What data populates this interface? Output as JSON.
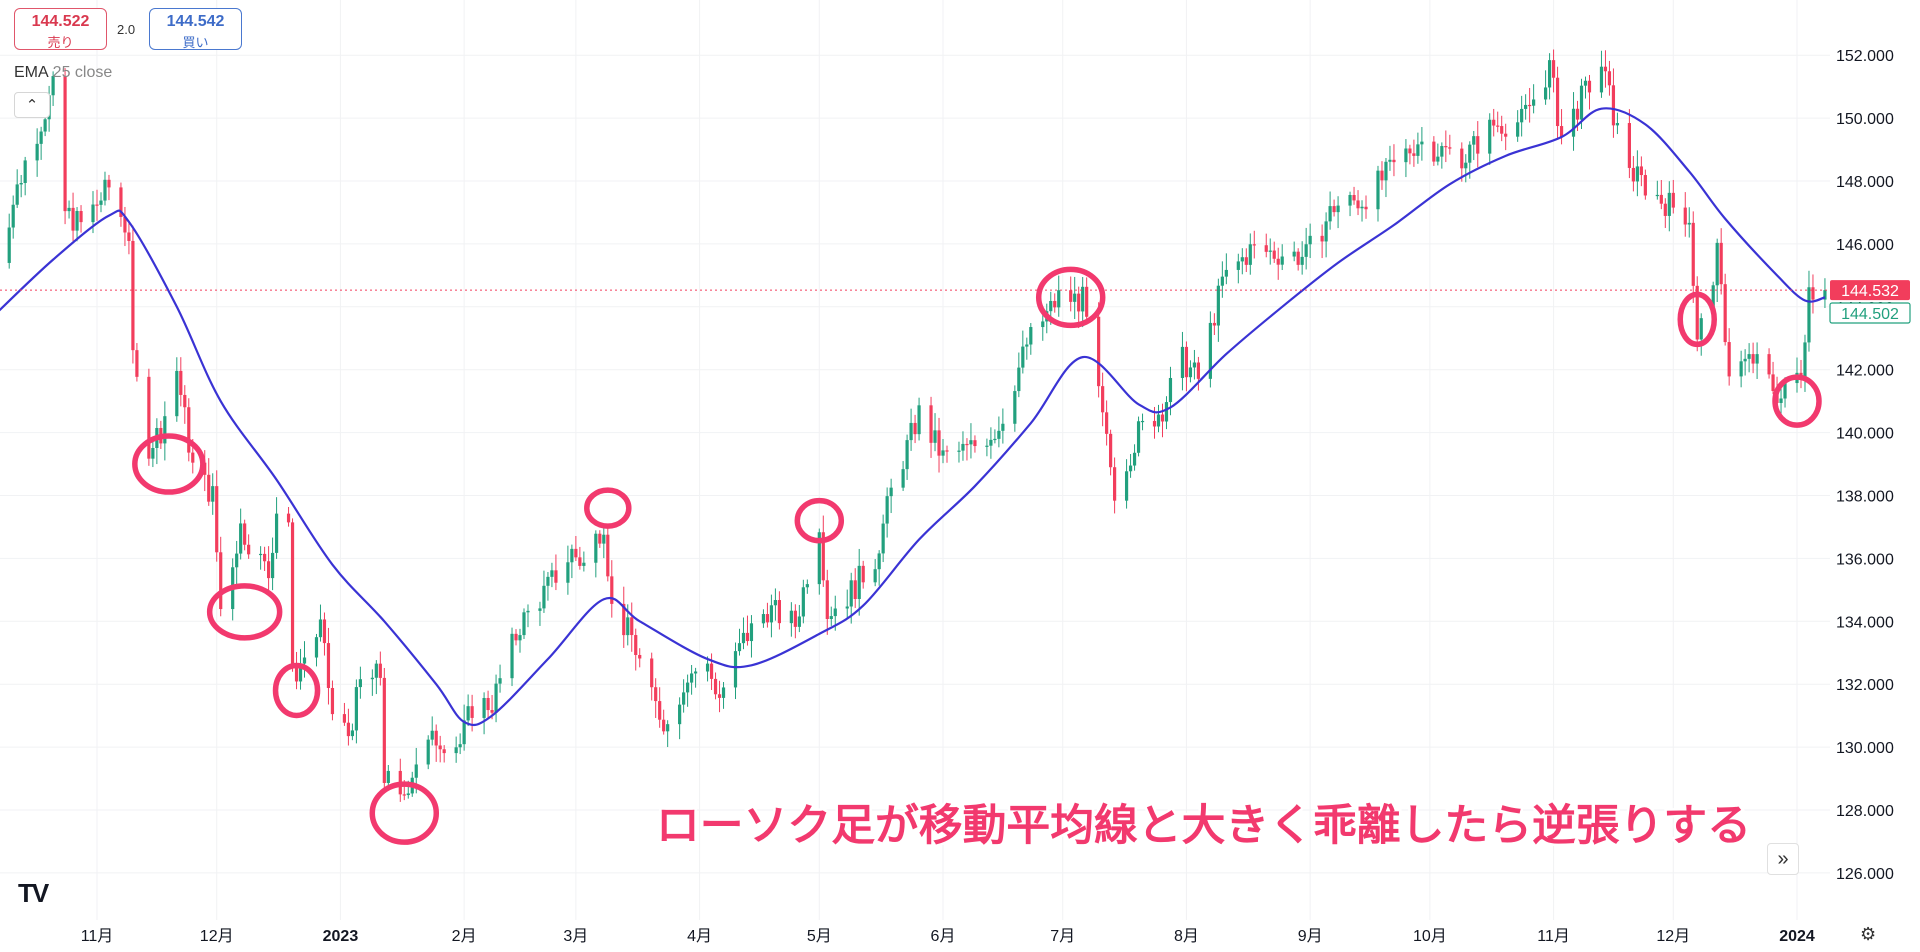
{
  "header": {
    "sell_price": "144.522",
    "sell_label": "売り",
    "buy_price": "144.542",
    "buy_label": "買い",
    "spread": "2.0"
  },
  "indicator": {
    "name": "EMA",
    "params": "25 close",
    "collapse_icon": "chevron-up-icon"
  },
  "annotation_text": "ローソク足が移動平均線と大きく乖離したら逆張りする",
  "icons": {
    "logo": "tradingview-logo",
    "goto_realtime": "chevrons-right-icon",
    "settings": "gear-icon"
  },
  "colors": {
    "up": "#22a07e",
    "down": "#f23d5c",
    "ema": "#3a33d4",
    "annotation": "#f2396e",
    "current_price": "#f23d5c",
    "bid_price": "#22a07e"
  },
  "chart_data": {
    "type": "candlestick",
    "ylim": [
      125,
      153
    ],
    "y_ticks": [
      "126.000",
      "128.000",
      "130.000",
      "132.000",
      "134.000",
      "136.000",
      "138.000",
      "140.000",
      "142.000",
      "144.000",
      "146.000",
      "148.000",
      "150.000",
      "152.000"
    ],
    "x_ticks": [
      {
        "label": "11月",
        "date": "2022-11-01"
      },
      {
        "label": "12月",
        "date": "2022-12-01"
      },
      {
        "label": "2023",
        "date": "2023-01-01",
        "bold": true
      },
      {
        "label": "2月",
        "date": "2023-02-01"
      },
      {
        "label": "3月",
        "date": "2023-03-01"
      },
      {
        "label": "4月",
        "date": "2023-04-01"
      },
      {
        "label": "5月",
        "date": "2023-05-01"
      },
      {
        "label": "6月",
        "date": "2023-06-01"
      },
      {
        "label": "7月",
        "date": "2023-07-01"
      },
      {
        "label": "8月",
        "date": "2023-08-01"
      },
      {
        "label": "9月",
        "date": "2023-09-01"
      },
      {
        "label": "10月",
        "date": "2023-10-01"
      },
      {
        "label": "11月",
        "date": "2023-11-01"
      },
      {
        "label": "12月",
        "date": "2023-12-01"
      },
      {
        "label": "2024",
        "date": "2024-01-01",
        "bold": true
      }
    ],
    "current_price": {
      "value": 144.532,
      "label": "144.532"
    },
    "bid_price": {
      "value": 144.502,
      "label": "144.502"
    },
    "close_path": [
      [
        "2022-10-06",
        145.2
      ],
      [
        "2022-10-14",
        148.6
      ],
      [
        "2022-10-21",
        150.9
      ],
      [
        "2022-10-24",
        147.0
      ],
      [
        "2022-10-28",
        146.6
      ],
      [
        "2022-11-04",
        147.8
      ],
      [
        "2022-11-09",
        146.3
      ],
      [
        "2022-11-10",
        142.2
      ],
      [
        "2022-11-14",
        139.6
      ],
      [
        "2022-11-17",
        140.1
      ],
      [
        "2022-11-21",
        142.0
      ],
      [
        "2022-11-25",
        138.9
      ],
      [
        "2022-11-30",
        138.0
      ],
      [
        "2022-12-02",
        134.4
      ],
      [
        "2022-12-07",
        137.0
      ],
      [
        "2022-12-14",
        135.5
      ],
      [
        "2022-12-16",
        137.6
      ],
      [
        "2022-12-19",
        137.2
      ],
      [
        "2022-12-20",
        132.2
      ],
      [
        "2022-12-27",
        133.8
      ],
      [
        "2022-12-30",
        131.0
      ],
      [
        "2023-01-03",
        130.4
      ],
      [
        "2023-01-06",
        132.0
      ],
      [
        "2023-01-11",
        132.3
      ],
      [
        "2023-01-12",
        129.1
      ],
      [
        "2023-01-16",
        128.2
      ],
      [
        "2023-01-20",
        129.6
      ],
      [
        "2023-01-25",
        130.3
      ],
      [
        "2023-01-31",
        130.1
      ],
      [
        "2023-02-03",
        131.3
      ],
      [
        "2023-02-08",
        131.4
      ],
      [
        "2023-02-15",
        133.9
      ],
      [
        "2023-02-21",
        134.9
      ],
      [
        "2023-02-28",
        136.2
      ],
      [
        "2023-03-03",
        135.8
      ],
      [
        "2023-03-08",
        137.2
      ],
      [
        "2023-03-10",
        134.4
      ],
      [
        "2023-03-15",
        133.5
      ],
      [
        "2023-03-20",
        131.5
      ],
      [
        "2023-03-24",
        130.7
      ],
      [
        "2023-03-29",
        132.4
      ],
      [
        "2023-04-03",
        132.5
      ],
      [
        "2023-04-06",
        131.6
      ],
      [
        "2023-04-12",
        133.4
      ],
      [
        "2023-04-18",
        134.4
      ],
      [
        "2023-04-25",
        133.9
      ],
      [
        "2023-05-01",
        137.2
      ],
      [
        "2023-05-03",
        134.3
      ],
      [
        "2023-05-08",
        134.8
      ],
      [
        "2023-05-15",
        136.0
      ],
      [
        "2023-05-19",
        138.1
      ],
      [
        "2023-05-26",
        140.6
      ],
      [
        "2023-06-01",
        139.2
      ],
      [
        "2023-06-08",
        139.5
      ],
      [
        "2023-06-15",
        140.2
      ],
      [
        "2023-06-22",
        142.8
      ],
      [
        "2023-06-30",
        144.3
      ],
      [
        "2023-07-06",
        144.2
      ],
      [
        "2023-07-10",
        141.1
      ],
      [
        "2023-07-14",
        138.2
      ],
      [
        "2023-07-20",
        140.0
      ],
      [
        "2023-07-26",
        140.8
      ],
      [
        "2023-07-31",
        142.3
      ],
      [
        "2023-08-04",
        141.7
      ],
      [
        "2023-08-10",
        144.8
      ],
      [
        "2023-08-17",
        145.8
      ],
      [
        "2023-08-24",
        145.7
      ],
      [
        "2023-08-31",
        145.6
      ],
      [
        "2023-09-07",
        147.2
      ],
      [
        "2023-09-14",
        147.4
      ],
      [
        "2023-09-21",
        148.3
      ],
      [
        "2023-09-28",
        149.3
      ],
      [
        "2023-10-03",
        149.0
      ],
      [
        "2023-10-10",
        148.8
      ],
      [
        "2023-10-17",
        149.8
      ],
      [
        "2023-10-24",
        149.9
      ],
      [
        "2023-10-31",
        151.6
      ],
      [
        "2023-11-03",
        149.4
      ],
      [
        "2023-11-08",
        150.6
      ],
      [
        "2023-11-13",
        151.7
      ],
      [
        "2023-11-17",
        149.6
      ],
      [
        "2023-11-21",
        148.2
      ],
      [
        "2023-11-28",
        147.4
      ],
      [
        "2023-12-05",
        146.9
      ],
      [
        "2023-12-07",
        142.8
      ],
      [
        "2023-12-12",
        145.6
      ],
      [
        "2023-12-15",
        142.0
      ],
      [
        "2023-12-21",
        142.3
      ],
      [
        "2023-12-28",
        141.1
      ],
      [
        "2024-01-02",
        142.0
      ],
      [
        "2024-01-04",
        144.6
      ],
      [
        "2024-01-08",
        144.53
      ]
    ],
    "ema_path": [
      [
        "2022-10-06",
        143.7
      ],
      [
        "2022-10-21",
        145.5
      ],
      [
        "2022-11-04",
        146.9
      ],
      [
        "2022-11-09",
        146.7
      ],
      [
        "2022-11-21",
        144.0
      ],
      [
        "2022-12-02",
        141.0
      ],
      [
        "2022-12-16",
        138.5
      ],
      [
        "2022-12-30",
        135.8
      ],
      [
        "2023-01-12",
        134.0
      ],
      [
        "2023-01-25",
        132.0
      ],
      [
        "2023-02-01",
        130.8
      ],
      [
        "2023-02-08",
        131.0
      ],
      [
        "2023-02-22",
        132.8
      ],
      [
        "2023-03-08",
        134.7
      ],
      [
        "2023-03-17",
        134.0
      ],
      [
        "2023-04-03",
        132.8
      ],
      [
        "2023-04-14",
        132.6
      ],
      [
        "2023-05-01",
        133.6
      ],
      [
        "2023-05-12",
        134.5
      ],
      [
        "2023-05-26",
        136.6
      ],
      [
        "2023-06-09",
        138.3
      ],
      [
        "2023-06-23",
        140.3
      ],
      [
        "2023-07-06",
        142.4
      ],
      [
        "2023-07-20",
        140.9
      ],
      [
        "2023-07-28",
        140.8
      ],
      [
        "2023-08-11",
        142.5
      ],
      [
        "2023-08-25",
        144.0
      ],
      [
        "2023-09-08",
        145.4
      ],
      [
        "2023-09-22",
        146.6
      ],
      [
        "2023-10-06",
        147.9
      ],
      [
        "2023-10-20",
        148.8
      ],
      [
        "2023-11-03",
        149.4
      ],
      [
        "2023-11-13",
        150.3
      ],
      [
        "2023-11-24",
        149.8
      ],
      [
        "2023-12-05",
        148.3
      ],
      [
        "2023-12-14",
        146.8
      ],
      [
        "2023-12-27",
        145.0
      ],
      [
        "2024-01-03",
        144.2
      ],
      [
        "2024-01-08",
        144.3
      ]
    ],
    "circles": [
      {
        "date": "2022-11-19",
        "price": 139.0
      },
      {
        "date": "2022-12-08",
        "price": 134.3
      },
      {
        "date": "2022-12-21",
        "price": 131.8
      },
      {
        "date": "2023-01-17",
        "price": 127.9
      },
      {
        "date": "2023-03-09",
        "price": 137.6
      },
      {
        "date": "2023-05-01",
        "price": 137.2
      },
      {
        "date": "2023-07-03",
        "price": 144.3
      },
      {
        "date": "2023-12-07",
        "price": 143.6
      },
      {
        "date": "2024-01-01",
        "price": 141.0
      }
    ]
  }
}
